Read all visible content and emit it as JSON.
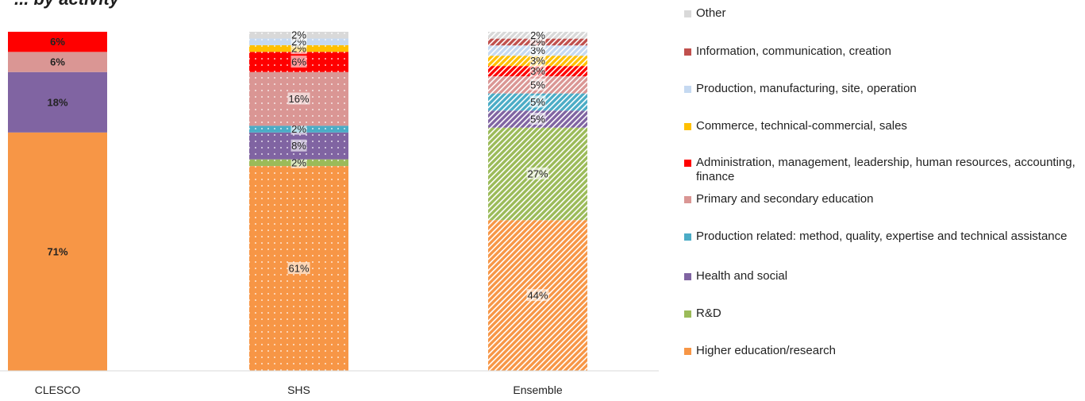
{
  "chart_data": {
    "type": "bar",
    "stacked": true,
    "normalized": true,
    "title": "",
    "categories": [
      "CLESCO",
      "SHS",
      "Ensemble"
    ],
    "ylim": [
      0,
      100
    ],
    "legend_position": "right",
    "series": [
      {
        "name": "Higher education/research",
        "color": "#F79646",
        "values": [
          71,
          61,
          44
        ],
        "labels": [
          "71%",
          "61%",
          "44%"
        ]
      },
      {
        "name": "R&D",
        "color": "#9BBB59",
        "values": [
          0,
          2,
          27
        ],
        "labels": [
          "",
          "2%",
          "27%"
        ]
      },
      {
        "name": "Health and social",
        "color": "#8064A2",
        "values": [
          18,
          8,
          5
        ],
        "labels": [
          "18%",
          "8%",
          "5%"
        ]
      },
      {
        "name": "Production related: method, quality, expertise and technical assistance",
        "color": "#4BACC6",
        "values": [
          0,
          2,
          5
        ],
        "labels": [
          "",
          "2%",
          "5%"
        ]
      },
      {
        "name": "Primary and secondary education",
        "color": "#DA9694",
        "values": [
          6,
          16,
          5
        ],
        "labels": [
          "6%",
          "16%",
          "5%"
        ]
      },
      {
        "name": "Administration, management, leadership, human resources, accounting, finance",
        "color": "#FF0000",
        "values": [
          6,
          6,
          3
        ],
        "labels": [
          "6%",
          "6%",
          "3%"
        ]
      },
      {
        "name": "Commerce, technical-commercial, sales",
        "color": "#FFC000",
        "values": [
          0,
          2,
          3
        ],
        "labels": [
          "",
          "2%",
          "3%"
        ]
      },
      {
        "name": "Production, manufacturing, site, operation",
        "color": "#C5D9F1",
        "values": [
          0,
          2,
          3
        ],
        "labels": [
          "",
          "2%",
          "3%"
        ]
      },
      {
        "name": "Information, communication, creation",
        "color": "#C0504D",
        "values": [
          0,
          0,
          2
        ],
        "labels": [
          "",
          "",
          "2%"
        ]
      },
      {
        "name": "Other",
        "color": "#D9D9D9",
        "values": [
          0,
          2,
          2
        ],
        "labels": [
          "",
          "2%",
          "2%"
        ]
      }
    ],
    "bar_fill_styles": [
      "solid",
      "dotted",
      "striped"
    ],
    "bold_labels_for": [
      "CLESCO"
    ]
  },
  "title_fragment": "... by activity"
}
